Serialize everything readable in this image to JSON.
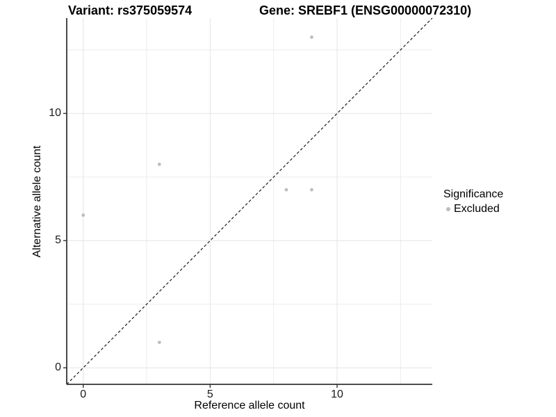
{
  "chart_data": {
    "type": "scatter",
    "title_left": "Variant: rs375059574",
    "title_right": "Gene: SREBF1 (ENSG00000072310)",
    "xlabel": "Reference allele count",
    "ylabel": "Alternative allele count",
    "xlim": [
      -0.65,
      13.75
    ],
    "ylim": [
      -0.65,
      13.75
    ],
    "xticks": [
      0,
      5,
      10
    ],
    "yticks": [
      0,
      5,
      10
    ],
    "minor_xticks": [
      2.5,
      7.5,
      12.5
    ],
    "minor_yticks": [
      2.5,
      7.5,
      12.5
    ],
    "grid": true,
    "points": [
      {
        "x": 0,
        "y": 6,
        "group": "Excluded"
      },
      {
        "x": 3,
        "y": 8,
        "group": "Excluded"
      },
      {
        "x": 3,
        "y": 1,
        "group": "Excluded"
      },
      {
        "x": 8,
        "y": 7,
        "group": "Excluded"
      },
      {
        "x": 9,
        "y": 7,
        "group": "Excluded"
      },
      {
        "x": 9,
        "y": 13,
        "group": "Excluded"
      }
    ],
    "reference_line": {
      "type": "identity",
      "style": "dashed"
    },
    "legend": {
      "title": "Significance",
      "position": "right",
      "items": [
        {
          "label": "Excluded",
          "color": "#bdbdbd"
        }
      ]
    },
    "colors": {
      "point": "#bdbdbd",
      "grid_major": "#e4e4e4",
      "grid_minor": "#ececec",
      "axis": "#333333",
      "dashed_line": "#1a1a1a",
      "text": "#000000"
    }
  }
}
